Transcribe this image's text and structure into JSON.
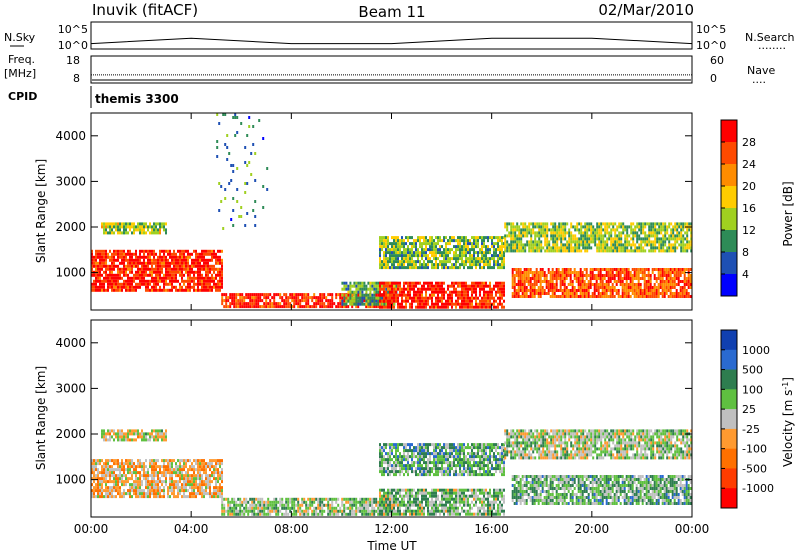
{
  "header": {
    "radar": "Inuvik (fitACF)",
    "beam": "Beam 11",
    "date": "02/Mar/2010"
  },
  "panels": {
    "nsky_label": "N.Sky",
    "nsearch_label": "N.Search",
    "nsearch_marker": "........",
    "freq_label": "Freq.",
    "freq_unit": "[MHz]",
    "nave_label": "Nave",
    "nave_marker": "....",
    "cpid_label": "CPID",
    "cpid_value": "themis 3300",
    "noise_ticks": [
      "10^5",
      "10^0"
    ],
    "freq_ticks": [
      "18",
      "8"
    ],
    "nave_ticks": [
      "60",
      "0"
    ]
  },
  "axes": {
    "xlabel": "Time UT",
    "ylabel": "Slant Range [km]",
    "xticks": [
      "00:00",
      "04:00",
      "08:00",
      "12:00",
      "16:00",
      "20:00",
      "00:00"
    ],
    "yticks": [
      "1000",
      "2000",
      "3000",
      "4000"
    ]
  },
  "colorbars": {
    "power": {
      "label": "Power [dB]",
      "ticks": [
        "28",
        "24",
        "20",
        "16",
        "12",
        "8",
        "4"
      ],
      "colors": [
        "#ff0000",
        "#ff4a00",
        "#ff8c00",
        "#ffcc00",
        "#a0d020",
        "#2e8b57",
        "#1e50b4",
        "#0000ff"
      ]
    },
    "velocity": {
      "label": "Velocity [m s",
      "label_sup": "-1",
      "label_end": "]",
      "ticks": [
        "1000",
        "500",
        "100",
        "25",
        "-25",
        "-100",
        "-500",
        "-1000"
      ],
      "colors": [
        "#1040b0",
        "#2a6ad0",
        "#2e7d4f",
        "#5fc040",
        "#c0c0c0",
        "#ff9a30",
        "#ff7000",
        "#ff3c00",
        "#ff0000"
      ]
    }
  },
  "chart_data": [
    {
      "type": "heatmap",
      "title": "Power [dB]",
      "xlabel": "Time UT",
      "ylabel": "Slant Range [km]",
      "xlim": [
        0,
        24
      ],
      "ylim": [
        180,
        4500
      ],
      "clim": [
        0,
        30
      ],
      "grid": false,
      "legend": "colorbar right",
      "regions": [
        {
          "t": [
            0.0,
            5.2
          ],
          "r": [
            600,
            1500
          ],
          "value": 27
        },
        {
          "t": [
            0.4,
            3.0
          ],
          "r": [
            1900,
            2100
          ],
          "value": 14
        },
        {
          "t": [
            5.2,
            12.0
          ],
          "r": [
            230,
            550
          ],
          "value": 26
        },
        {
          "t": [
            10.0,
            12.2
          ],
          "r": [
            300,
            800
          ],
          "value": 10
        },
        {
          "t": [
            11.5,
            16.5
          ],
          "r": [
            250,
            800
          ],
          "value": 27
        },
        {
          "t": [
            11.5,
            16.5
          ],
          "r": [
            1100,
            1800
          ],
          "value": 12
        },
        {
          "t": [
            16.8,
            24.0
          ],
          "r": [
            500,
            1100
          ],
          "value": 24
        },
        {
          "t": [
            16.5,
            24.0
          ],
          "r": [
            1500,
            2100
          ],
          "value": 13
        },
        {
          "t": [
            5.0,
            7.0
          ],
          "r": [
            2000,
            4500
          ],
          "value": 8
        }
      ]
    },
    {
      "type": "heatmap",
      "title": "Velocity [m s-1]",
      "xlabel": "Time UT",
      "ylabel": "Slant Range [km]",
      "xlim": [
        0,
        24
      ],
      "ylim": [
        180,
        4500
      ],
      "clim": [
        -1000,
        1000
      ],
      "grid": false,
      "legend": "colorbar right",
      "regions": [
        {
          "t": [
            0.0,
            5.2
          ],
          "r": [
            600,
            1450
          ],
          "value": -150
        },
        {
          "t": [
            0.4,
            3.0
          ],
          "r": [
            1900,
            2100
          ],
          "value": 0
        },
        {
          "t": [
            5.2,
            12.0
          ],
          "r": [
            230,
            600
          ],
          "value": 150
        },
        {
          "t": [
            11.5,
            16.5
          ],
          "r": [
            250,
            800
          ],
          "value": 200
        },
        {
          "t": [
            11.5,
            16.5
          ],
          "r": [
            1100,
            1800
          ],
          "value": 300
        },
        {
          "t": [
            16.8,
            24.0
          ],
          "r": [
            500,
            1100
          ],
          "value": 250
        },
        {
          "t": [
            16.5,
            24.0
          ],
          "r": [
            1500,
            2100
          ],
          "value": 100
        }
      ]
    },
    {
      "type": "line",
      "title": "N.Sky / N.Search",
      "ylim": [
        1,
        100000
      ],
      "series": [
        {
          "name": "N.Sky",
          "x": [
            0,
            4,
            8,
            12,
            16,
            20,
            24
          ],
          "y": [
            10,
            100,
            10,
            10,
            100,
            100,
            10
          ]
        }
      ]
    },
    {
      "type": "line",
      "title": "Freq. [MHz]",
      "ylim": [
        8,
        18
      ],
      "series": [
        {
          "name": "Freq.",
          "x": [
            0,
            24
          ],
          "y": [
            11,
            11
          ]
        }
      ]
    }
  ]
}
